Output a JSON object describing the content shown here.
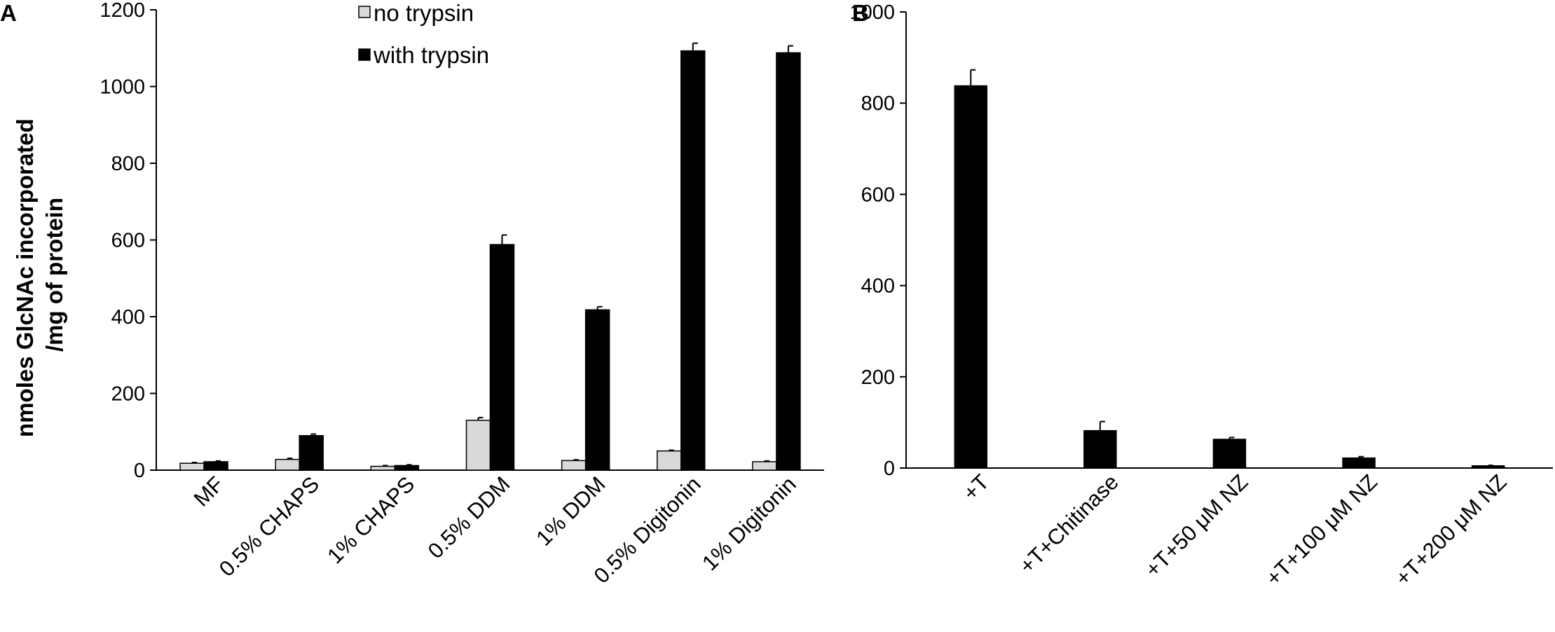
{
  "colors": {
    "no_trypsin": "#d9d9d9",
    "with_trypsin": "#000000",
    "axis": "#000000"
  },
  "chart_data": [
    {
      "panel": "A",
      "type": "bar",
      "categories": [
        "MF",
        "0.5% CHAPS",
        "1% CHAPS",
        "0.5% DDM",
        "1% DDM",
        "0.5% Digitonin",
        "1% Digitonin"
      ],
      "series": [
        {
          "name": "no trypsin",
          "values": [
            18,
            28,
            10,
            130,
            25,
            50,
            22
          ],
          "errors": [
            2,
            3,
            2,
            7,
            2,
            2,
            2
          ]
        },
        {
          "name": "with trypsin",
          "values": [
            22,
            90,
            12,
            588,
            418,
            1093,
            1088
          ],
          "errors": [
            2,
            4,
            2,
            25,
            8,
            20,
            18
          ]
        }
      ],
      "ylabel": "nmoles GlcNAc incorporated\n/mg of protein",
      "ylim": [
        0,
        1200
      ],
      "yticks": [
        0,
        200,
        400,
        600,
        800,
        1000,
        1200
      ],
      "legend_position": "top",
      "grid": false
    },
    {
      "panel": "B",
      "type": "bar",
      "categories": [
        "+T",
        "+T+Chitinase",
        "+T+50 μM NZ",
        "+T+100 μM NZ",
        "+T+200 μM NZ"
      ],
      "series": [
        {
          "values": [
            838,
            82,
            63,
            22,
            5
          ],
          "errors": [
            35,
            20,
            4,
            3,
            1
          ]
        }
      ],
      "ylim": [
        0,
        1000
      ],
      "yticks": [
        0,
        200,
        400,
        600,
        800,
        1000
      ],
      "grid": false
    }
  ]
}
